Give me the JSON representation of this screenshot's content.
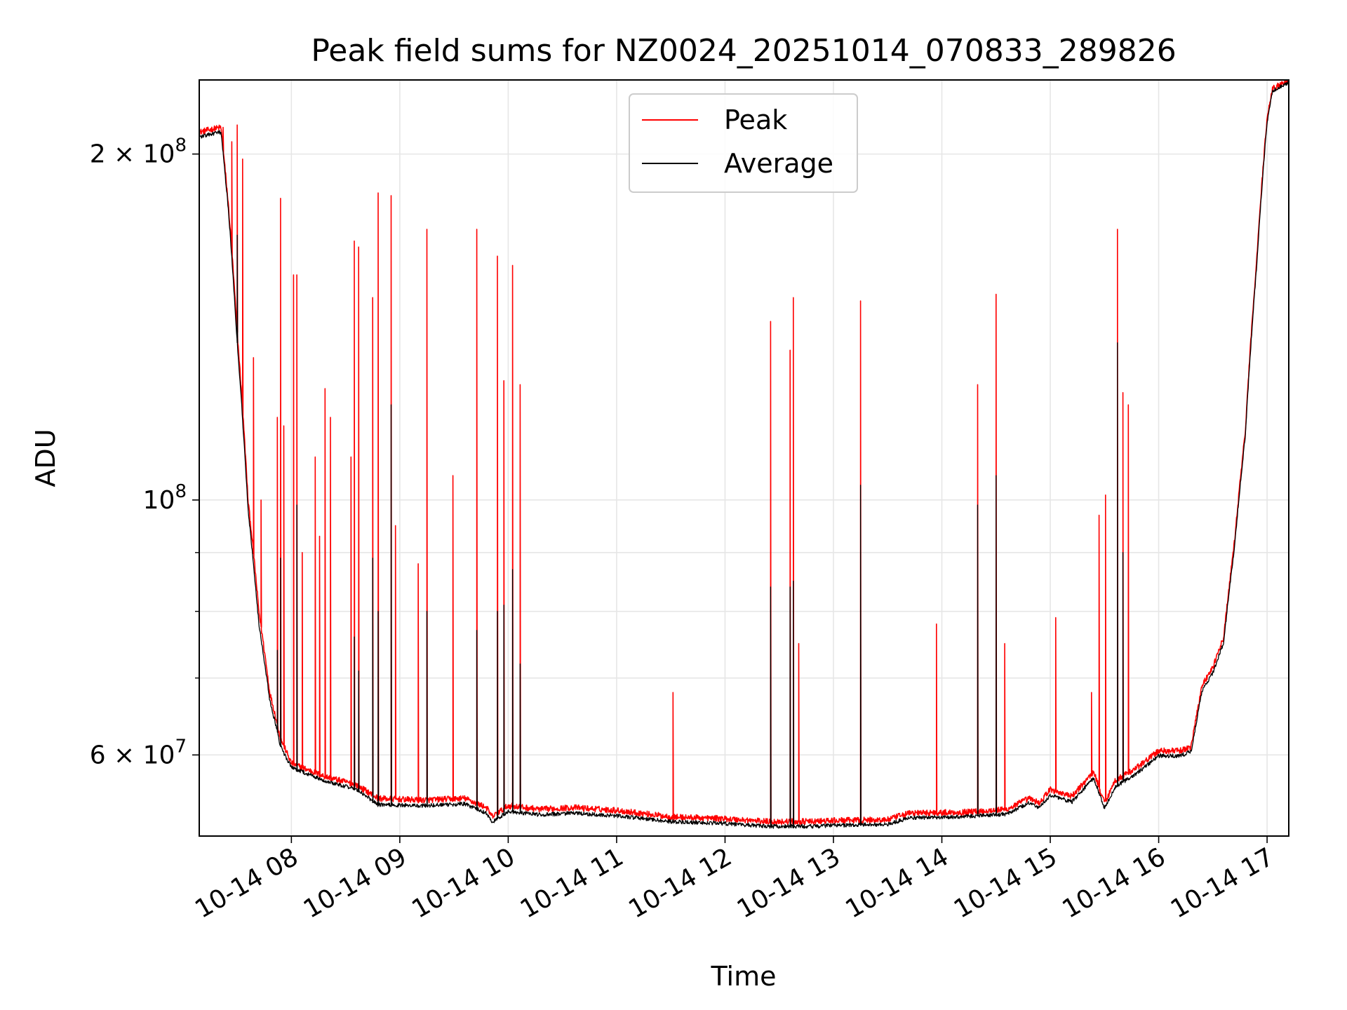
{
  "chart_data": {
    "type": "line",
    "title": "Peak field sums for NZ0024_20251014_070833_289826",
    "xlabel": "Time",
    "ylabel": "ADU",
    "yscale": "log",
    "ylim": [
      51000000,
      232000000
    ],
    "xlim_hours": [
      7.15,
      17.2
    ],
    "grid": true,
    "legend_position": "top-center",
    "x_ticks": [
      {
        "hour": 8,
        "label": "10-14 08"
      },
      {
        "hour": 9,
        "label": "10-14 09"
      },
      {
        "hour": 10,
        "label": "10-14 10"
      },
      {
        "hour": 11,
        "label": "10-14 11"
      },
      {
        "hour": 12,
        "label": "10-14 12"
      },
      {
        "hour": 13,
        "label": "10-14 13"
      },
      {
        "hour": 14,
        "label": "10-14 14"
      },
      {
        "hour": 15,
        "label": "10-14 15"
      },
      {
        "hour": 16,
        "label": "10-14 16"
      },
      {
        "hour": 17,
        "label": "10-14 17"
      }
    ],
    "y_ticks_major": [
      {
        "value": 60000000,
        "mantissa": "6",
        "exp": "7"
      },
      {
        "value": 100000000,
        "mantissa": "",
        "exp": "8"
      },
      {
        "value": 200000000,
        "mantissa": "2",
        "exp": "8"
      }
    ],
    "y_ticks_minor": [
      70000000,
      80000000,
      90000000
    ],
    "series": [
      {
        "name": "Peak",
        "color": "#ff0000",
        "baseline": [
          [
            7.15,
            209000000
          ],
          [
            7.35,
            211000000
          ],
          [
            7.42,
            180000000
          ],
          [
            7.5,
            140000000
          ],
          [
            7.6,
            100000000
          ],
          [
            7.7,
            80000000
          ],
          [
            7.8,
            68000000
          ],
          [
            7.9,
            62000000
          ],
          [
            8.0,
            59000000
          ],
          [
            8.3,
            57500000
          ],
          [
            8.6,
            56500000
          ],
          [
            8.8,
            55000000
          ],
          [
            9.2,
            54800000
          ],
          [
            9.6,
            55000000
          ],
          [
            9.8,
            54000000
          ],
          [
            9.85,
            53000000
          ],
          [
            10.0,
            54200000
          ],
          [
            10.3,
            53800000
          ],
          [
            10.6,
            54000000
          ],
          [
            11.0,
            53700000
          ],
          [
            11.5,
            53000000
          ],
          [
            12.0,
            52800000
          ],
          [
            12.4,
            52500000
          ],
          [
            12.8,
            52500000
          ],
          [
            13.0,
            52600000
          ],
          [
            13.5,
            52700000
          ],
          [
            13.7,
            53400000
          ],
          [
            14.2,
            53500000
          ],
          [
            14.6,
            53800000
          ],
          [
            14.8,
            55000000
          ],
          [
            14.9,
            54500000
          ],
          [
            15.0,
            56000000
          ],
          [
            15.2,
            55200000
          ],
          [
            15.4,
            58000000
          ],
          [
            15.5,
            54500000
          ],
          [
            15.6,
            57000000
          ],
          [
            15.8,
            58500000
          ],
          [
            16.0,
            60500000
          ],
          [
            16.2,
            60500000
          ],
          [
            16.3,
            61000000
          ],
          [
            16.4,
            69000000
          ],
          [
            16.5,
            71500000
          ],
          [
            16.6,
            76000000
          ],
          [
            16.7,
            92000000
          ],
          [
            16.8,
            115000000
          ],
          [
            16.9,
            160000000
          ],
          [
            17.0,
            215000000
          ],
          [
            17.05,
            228000000
          ],
          [
            17.2,
            232000000
          ]
        ],
        "spikes": [
          [
            7.37,
            211000000
          ],
          [
            7.45,
            205000000
          ],
          [
            7.5,
            212000000
          ],
          [
            7.55,
            198000000
          ],
          [
            7.65,
            133000000
          ],
          [
            7.72,
            100000000
          ],
          [
            7.87,
            118000000
          ],
          [
            7.9,
            183000000
          ],
          [
            7.93,
            116000000
          ],
          [
            8.02,
            157000000
          ],
          [
            8.05,
            157000000
          ],
          [
            8.1,
            90000000
          ],
          [
            8.22,
            109000000
          ],
          [
            8.26,
            93000000
          ],
          [
            8.31,
            125000000
          ],
          [
            8.36,
            118000000
          ],
          [
            8.55,
            109000000
          ],
          [
            8.58,
            168000000
          ],
          [
            8.62,
            166000000
          ],
          [
            8.75,
            150000000
          ],
          [
            8.8,
            185000000
          ],
          [
            8.92,
            184000000
          ],
          [
            8.96,
            95000000
          ],
          [
            9.17,
            88000000
          ],
          [
            9.25,
            172000000
          ],
          [
            9.49,
            105000000
          ],
          [
            9.71,
            172000000
          ],
          [
            9.9,
            163000000
          ],
          [
            9.96,
            127000000
          ],
          [
            10.04,
            160000000
          ],
          [
            10.11,
            126000000
          ],
          [
            11.52,
            68000000
          ],
          [
            12.42,
            143000000
          ],
          [
            12.6,
            135000000
          ],
          [
            12.63,
            150000000
          ],
          [
            12.68,
            75000000
          ],
          [
            13.25,
            149000000
          ],
          [
            13.95,
            78000000
          ],
          [
            14.33,
            126000000
          ],
          [
            14.5,
            151000000
          ],
          [
            14.58,
            75000000
          ],
          [
            15.05,
            79000000
          ],
          [
            15.38,
            68000000
          ],
          [
            15.45,
            97000000
          ],
          [
            15.51,
            101000000
          ],
          [
            15.62,
            172000000
          ],
          [
            15.67,
            124000000
          ],
          [
            15.72,
            121000000
          ]
        ]
      },
      {
        "name": "Average",
        "color": "#000000",
        "baseline": [
          [
            7.15,
            207000000
          ],
          [
            7.35,
            209000000
          ],
          [
            7.42,
            178000000
          ],
          [
            7.5,
            137000000
          ],
          [
            7.6,
            98000000
          ],
          [
            7.7,
            78000000
          ],
          [
            7.8,
            67000000
          ],
          [
            7.9,
            61000000
          ],
          [
            8.0,
            58500000
          ],
          [
            8.3,
            57000000
          ],
          [
            8.6,
            56000000
          ],
          [
            8.8,
            54300000
          ],
          [
            9.2,
            54200000
          ],
          [
            9.6,
            54400000
          ],
          [
            9.8,
            53400000
          ],
          [
            9.85,
            52400000
          ],
          [
            10.0,
            53600000
          ],
          [
            10.3,
            53200000
          ],
          [
            10.6,
            53400000
          ],
          [
            11.0,
            53100000
          ],
          [
            11.5,
            52500000
          ],
          [
            12.0,
            52300000
          ],
          [
            12.4,
            52000000
          ],
          [
            12.8,
            52000000
          ],
          [
            13.0,
            52100000
          ],
          [
            13.5,
            52200000
          ],
          [
            13.7,
            52900000
          ],
          [
            14.2,
            53000000
          ],
          [
            14.6,
            53300000
          ],
          [
            14.8,
            54500000
          ],
          [
            14.9,
            54000000
          ],
          [
            15.0,
            55400000
          ],
          [
            15.2,
            54600000
          ],
          [
            15.4,
            57300000
          ],
          [
            15.5,
            53900000
          ],
          [
            15.6,
            56300000
          ],
          [
            15.8,
            57800000
          ],
          [
            16.0,
            59900000
          ],
          [
            16.2,
            59900000
          ],
          [
            16.3,
            60400000
          ],
          [
            16.4,
            68200000
          ],
          [
            16.5,
            70700000
          ],
          [
            16.6,
            75200000
          ],
          [
            16.7,
            91000000
          ],
          [
            16.8,
            114000000
          ],
          [
            16.9,
            158000000
          ],
          [
            17.0,
            213000000
          ],
          [
            17.05,
            227000000
          ],
          [
            17.2,
            231000000
          ]
        ],
        "spikes": [
          [
            7.5,
            170000000
          ],
          [
            7.87,
            74000000
          ],
          [
            7.9,
            89000000
          ],
          [
            8.05,
            99000000
          ],
          [
            8.58,
            76000000
          ],
          [
            8.62,
            71000000
          ],
          [
            8.75,
            89000000
          ],
          [
            8.8,
            80000000
          ],
          [
            8.92,
            121000000
          ],
          [
            9.25,
            80000000
          ],
          [
            9.71,
            77000000
          ],
          [
            9.9,
            80000000
          ],
          [
            9.96,
            81000000
          ],
          [
            10.04,
            87000000
          ],
          [
            10.11,
            72000000
          ],
          [
            12.42,
            84000000
          ],
          [
            12.6,
            84000000
          ],
          [
            12.63,
            85000000
          ],
          [
            13.25,
            103000000
          ],
          [
            14.33,
            99000000
          ],
          [
            14.5,
            105000000
          ],
          [
            15.62,
            137000000
          ],
          [
            15.67,
            90000000
          ]
        ]
      }
    ],
    "legend": [
      {
        "label": "Peak",
        "color": "#ff0000"
      },
      {
        "label": "Average",
        "color": "#000000"
      }
    ]
  }
}
